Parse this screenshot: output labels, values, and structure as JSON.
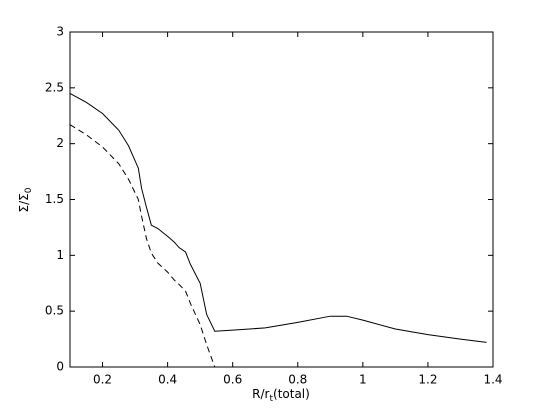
{
  "chart_data": {
    "type": "line",
    "x_label": [
      "R/r",
      "t",
      "(total)"
    ],
    "y_label": [
      "Σ/Σ",
      "0"
    ],
    "x": [
      0.1,
      0.15,
      0.2,
      0.25,
      0.28,
      0.31,
      0.32,
      0.335,
      0.35,
      0.37,
      0.4,
      0.42,
      0.435,
      0.455,
      0.47,
      0.5,
      0.52,
      0.545,
      0.6,
      0.7,
      0.8,
      0.9,
      0.95,
      1.0,
      1.1,
      1.2,
      1.3,
      1.38
    ],
    "series": [
      {
        "color": "#000000",
        "dashed": false,
        "values": [
          2.45,
          2.37,
          2.27,
          2.12,
          1.98,
          1.78,
          1.6,
          1.43,
          1.27,
          1.24,
          1.17,
          1.12,
          1.07,
          1.03,
          0.92,
          0.75,
          0.47,
          0.32,
          0.33,
          0.35,
          0.4,
          0.455,
          0.455,
          0.42,
          0.34,
          0.29,
          0.25,
          0.22
        ]
      },
      {
        "color": "#000000",
        "dashed": true,
        "values": [
          2.17,
          2.08,
          1.97,
          1.82,
          1.68,
          1.5,
          1.35,
          1.15,
          1.02,
          0.93,
          0.85,
          0.78,
          0.74,
          0.68,
          0.57,
          0.38,
          0.2,
          0.0,
          null,
          null,
          null,
          null,
          null,
          null,
          null,
          null,
          null,
          null
        ]
      }
    ],
    "xlim": [
      0.1,
      1.4
    ],
    "xticks": [
      0.2,
      0.4,
      0.6,
      0.8,
      1,
      1.2,
      1.4
    ],
    "ylim": [
      0,
      3
    ],
    "yticks": [
      0,
      0.5,
      1,
      1.5,
      2,
      2.5,
      3
    ],
    "grid": false
  }
}
